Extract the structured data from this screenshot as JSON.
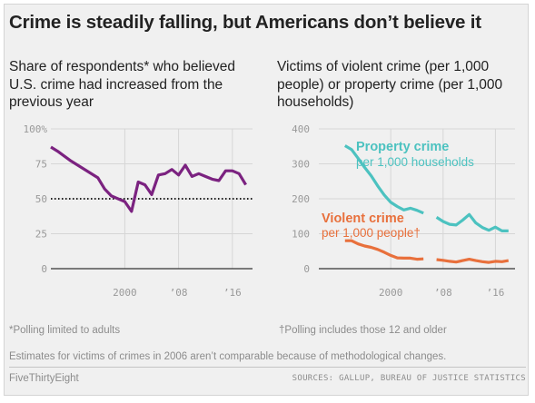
{
  "header": {
    "title": "Crime is steadily falling, but Americans don’t believe it"
  },
  "footer": {
    "footnote_left": "*Polling limited to adults",
    "footnote_right": "†Polling includes those 12 and older",
    "note": "Estimates for victims of crimes in 2006 aren’t comparable because of methodological changes.",
    "brand": "FiveThirtyEight",
    "sources": "SOURCES: GALLUP, BUREAU OF JUSTICE STATISTICS"
  },
  "chart_data": [
    {
      "type": "line",
      "title": "Share of respondents* who believed U.S. crime had increased from the previous year",
      "xlabel": "",
      "ylabel": "",
      "xlim": [
        1989,
        2019
      ],
      "ylim": [
        0,
        100
      ],
      "y_ticks": [
        0,
        25,
        50,
        75,
        100
      ],
      "y_tick_labels": [
        "0",
        "25",
        "50",
        "75",
        "100%"
      ],
      "x_ticks": [
        2000,
        2008,
        2016
      ],
      "x_tick_labels": [
        "2000",
        "’08",
        "’16"
      ],
      "reference_line": {
        "y": 50,
        "style": "dotted"
      },
      "grid": true,
      "series": [
        {
          "color": "#7b2280",
          "x": [
            1989,
            1990,
            1992,
            1993,
            1996,
            1997,
            1998,
            2000,
            2001,
            2002,
            2003,
            2004,
            2005,
            2006,
            2007,
            2008,
            2009,
            2010,
            2011,
            2012,
            2013,
            2014,
            2015,
            2016,
            2017,
            2018
          ],
          "y": [
            87,
            84,
            77,
            74,
            65,
            57,
            52,
            48,
            41,
            62,
            60,
            53,
            67,
            68,
            71,
            67,
            74,
            66,
            68,
            66,
            64,
            63,
            70,
            70,
            68,
            60
          ]
        }
      ]
    },
    {
      "type": "line",
      "title": "Victims of violent crime (per 1,000 people) or property crime (per 1,000 households)",
      "xlabel": "",
      "ylabel": "",
      "xlim": [
        1989,
        2019
      ],
      "ylim": [
        0,
        400
      ],
      "y_ticks": [
        0,
        100,
        200,
        300,
        400
      ],
      "y_tick_labels": [
        "0",
        "100",
        "200",
        "300",
        "400"
      ],
      "x_ticks": [
        2000,
        2008,
        2016
      ],
      "x_tick_labels": [
        "2000",
        "’08",
        "’16"
      ],
      "grid": true,
      "gap_note": "Series broken at 2006",
      "series": [
        {
          "name": "Property crime",
          "sublabel": "per 1,000 households",
          "color": "#4cc2c0",
          "segments": [
            {
              "x": [
                1993,
                1994,
                1995,
                1996,
                1997,
                1998,
                1999,
                2000,
                2001,
                2002,
                2003,
                2004,
                2005
              ],
              "y": [
                352,
                341,
                316,
                290,
                266,
                237,
                211,
                190,
                178,
                168,
                173,
                167,
                159
              ]
            },
            {
              "x": [
                2007,
                2008,
                2009,
                2010,
                2011,
                2012,
                2013,
                2014,
                2015,
                2016,
                2017,
                2018
              ],
              "y": [
                147,
                135,
                127,
                125,
                139,
                155,
                131,
                118,
                110,
                119,
                108,
                108
              ]
            }
          ]
        },
        {
          "name": "Violent crime",
          "sublabel": "per 1,000 people†",
          "color": "#e8703c",
          "segments": [
            {
              "x": [
                1993,
                1994,
                1995,
                1996,
                1997,
                1998,
                1999,
                2000,
                2001,
                2002,
                2003,
                2004,
                2005
              ],
              "y": [
                80,
                80,
                71,
                65,
                61,
                55,
                47,
                38,
                31,
                30,
                30,
                27,
                28
              ]
            },
            {
              "x": [
                2007,
                2008,
                2009,
                2010,
                2011,
                2012,
                2013,
                2014,
                2015,
                2016,
                2017,
                2018
              ],
              "y": [
                26,
                24,
                21,
                19,
                23,
                27,
                23,
                20,
                18,
                21,
                20,
                23
              ]
            }
          ]
        }
      ]
    }
  ]
}
